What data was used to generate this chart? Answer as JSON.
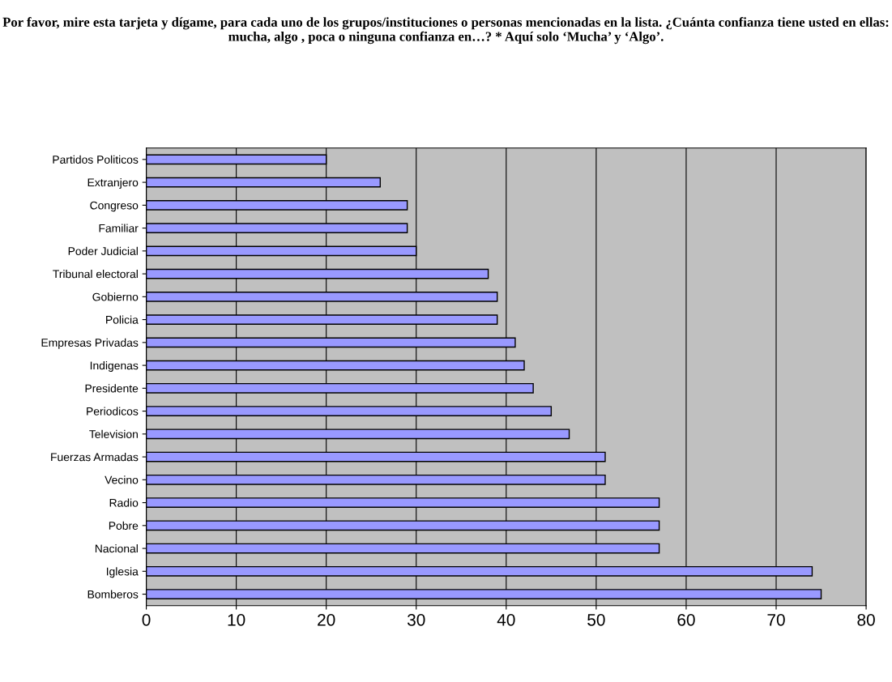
{
  "chart_data": {
    "type": "bar",
    "orientation": "horizontal",
    "title": "Por favor, mire esta tarjeta y dígame, para cada uno de los grupos/instituciones o personas mencionadas en la lista. ¿Cuánta confianza tiene usted en ellas: mucha, algo , poca o ninguna confianza en…? * Aquí solo ‘Mucha’ y ‘Algo’.",
    "categories": [
      "Partidos Politicos",
      "Extranjero",
      "Congreso",
      "Familiar",
      "Poder Judicial",
      "Tribunal electoral",
      "Gobierno",
      "Policia",
      "Empresas Privadas",
      "Indigenas",
      "Presidente",
      "Periodicos",
      "Television",
      "Fuerzas Armadas",
      "Vecino",
      "Radio",
      "Pobre",
      "Nacional",
      "Iglesia",
      "Bomberos"
    ],
    "values": [
      20,
      26,
      29,
      29,
      30,
      38,
      39,
      39,
      41,
      42,
      43,
      45,
      47,
      51,
      51,
      57,
      57,
      57,
      74,
      75
    ],
    "color": "#9999ff",
    "xlim": [
      0,
      80
    ],
    "xticks": [
      0,
      10,
      20,
      30,
      40,
      50,
      60,
      70,
      80
    ],
    "grid": "x"
  }
}
